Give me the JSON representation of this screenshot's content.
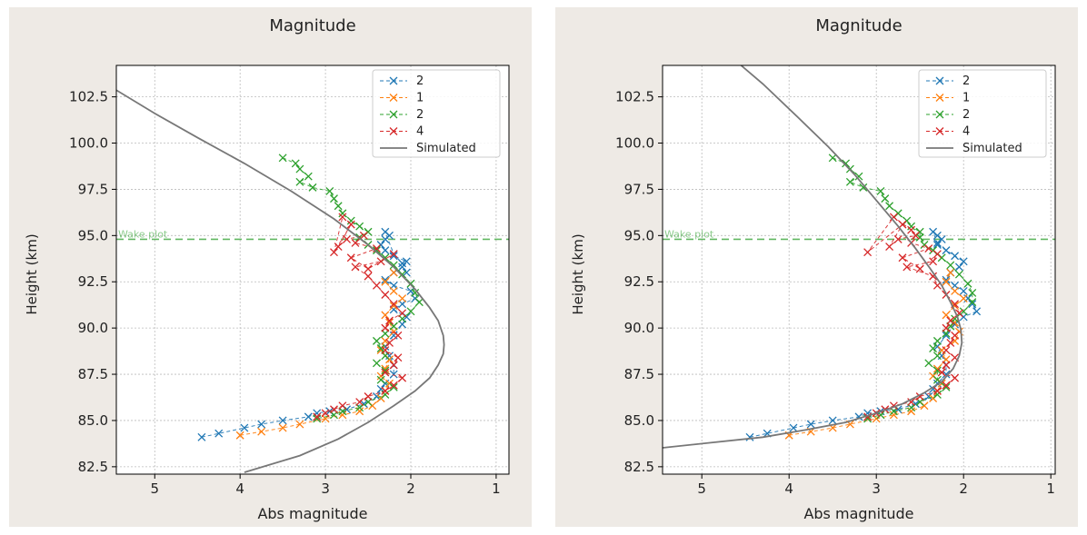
{
  "chart_data": [
    {
      "type": "line",
      "title": "Magnitude",
      "xlabel": "Abs magnitude",
      "ylabel": "Height (km)",
      "xlim": [
        5.45,
        0.85
      ],
      "ylim": [
        82.1,
        104.2
      ],
      "x_inverted": true,
      "xticks": [
        5,
        4,
        3,
        2,
        1
      ],
      "xtick_labels": [
        "5",
        "4",
        "3",
        "2",
        "1"
      ],
      "yticks": [
        82.5,
        85.0,
        87.5,
        90.0,
        92.5,
        95.0,
        97.5,
        100.0,
        102.5
      ],
      "ytick_labels": [
        "82.5",
        "85.0",
        "87.5",
        "90.0",
        "92.5",
        "95.0",
        "97.5",
        "100.0",
        "102.5"
      ],
      "grid": true,
      "legend_position": "top-right",
      "hline": {
        "y": 94.8,
        "label": "Wake plot",
        "color": "#2ca02c"
      },
      "series": [
        {
          "name": "2",
          "color": "#1f77b4",
          "marker": "x",
          "dashed": true,
          "x": [
            4.45,
            4.25,
            3.95,
            3.75,
            3.5,
            3.2,
            3.1,
            2.95,
            2.75,
            2.55,
            2.4,
            2.35,
            2.3,
            2.2,
            2.2,
            2.25,
            2.3,
            2.2,
            2.1,
            2.05,
            2.2,
            2.1,
            1.95,
            2.0,
            2.2,
            2.3,
            2.2,
            2.1,
            2.05,
            2.2,
            2.3,
            2.35,
            2.3,
            2.25,
            2.3,
            2.2,
            2.1,
            2.05
          ],
          "y": [
            84.1,
            84.3,
            84.6,
            84.8,
            85.0,
            85.2,
            85.4,
            85.5,
            85.6,
            85.9,
            86.3,
            86.7,
            87.0,
            87.5,
            88.0,
            88.5,
            89.0,
            89.6,
            90.2,
            90.6,
            91.0,
            91.3,
            91.6,
            92.0,
            92.3,
            92.6,
            93.0,
            93.3,
            93.6,
            93.9,
            94.2,
            94.5,
            94.8,
            95.0,
            95.2,
            94.0,
            93.5,
            93.0
          ]
        },
        {
          "name": "1",
          "color": "#ff7f0e",
          "marker": "x",
          "dashed": true,
          "x": [
            4.0,
            3.75,
            3.5,
            3.3,
            3.0,
            2.8,
            2.6,
            2.45,
            2.35,
            2.3,
            2.25,
            2.35,
            2.3,
            2.25,
            2.35,
            2.3,
            2.2,
            2.25,
            2.3,
            2.2,
            2.1,
            2.2,
            2.3,
            2.2
          ],
          "y": [
            84.2,
            84.4,
            84.6,
            84.8,
            85.1,
            85.3,
            85.5,
            85.8,
            86.2,
            86.6,
            87.0,
            87.4,
            87.8,
            88.3,
            88.8,
            89.3,
            89.8,
            90.3,
            90.7,
            91.2,
            91.6,
            92.0,
            92.5,
            93.0
          ]
        },
        {
          "name": "2",
          "color": "#2ca02c",
          "marker": "x",
          "dashed": true,
          "x": [
            3.5,
            3.35,
            3.3,
            3.2,
            3.3,
            3.15,
            2.95,
            2.9,
            2.85,
            2.8,
            2.7,
            2.6,
            2.5,
            2.6,
            2.5,
            2.4,
            2.3,
            2.2,
            2.1,
            2.0,
            1.95,
            1.9,
            2.0,
            2.1,
            2.2,
            2.3,
            2.4,
            2.35,
            2.3,
            2.4,
            2.3,
            2.35,
            2.2,
            2.3,
            2.5,
            2.6,
            2.8,
            2.9,
            3.1
          ],
          "y": [
            99.2,
            98.9,
            98.6,
            98.2,
            97.9,
            97.6,
            97.4,
            97.0,
            96.6,
            96.2,
            95.8,
            95.5,
            95.2,
            94.9,
            94.5,
            94.2,
            93.8,
            93.4,
            92.9,
            92.4,
            91.9,
            91.4,
            90.9,
            90.5,
            90.1,
            89.7,
            89.3,
            88.9,
            88.5,
            88.1,
            87.7,
            87.2,
            86.8,
            86.4,
            86.0,
            85.7,
            85.5,
            85.3,
            85.1
          ]
        },
        {
          "name": "4",
          "color": "#d62728",
          "marker": "x",
          "dashed": true,
          "x": [
            3.1,
            3.0,
            2.9,
            2.8,
            2.6,
            2.5,
            2.3,
            2.2,
            2.1,
            2.3,
            2.2,
            2.15,
            2.3,
            2.25,
            2.15,
            2.3,
            2.25,
            2.1,
            2.2,
            2.3,
            2.4,
            2.5,
            2.65,
            2.35,
            2.2,
            2.5,
            2.7,
            2.4,
            2.65,
            2.55,
            2.75,
            2.85,
            2.7,
            2.9,
            2.8
          ],
          "y": [
            85.2,
            85.4,
            85.6,
            85.8,
            86.0,
            86.3,
            86.6,
            86.9,
            87.3,
            87.6,
            88.0,
            88.4,
            88.8,
            89.2,
            89.6,
            90.0,
            90.4,
            90.8,
            91.3,
            91.8,
            92.3,
            92.8,
            93.3,
            93.6,
            94.0,
            93.2,
            93.8,
            94.3,
            94.6,
            95.0,
            94.8,
            94.4,
            95.6,
            94.1,
            96.0
          ]
        },
        {
          "name": "Simulated",
          "color": "#777777",
          "marker": "none",
          "dashed": false,
          "x": [
            3.95,
            3.3,
            2.85,
            2.5,
            2.2,
            1.95,
            1.78,
            1.68,
            1.62,
            1.61,
            1.62,
            1.68,
            1.78,
            1.95,
            2.2,
            2.5,
            2.9,
            3.4,
            3.95,
            4.5,
            5.0,
            5.5
          ],
          "y": [
            82.2,
            83.1,
            84.0,
            84.9,
            85.8,
            86.6,
            87.3,
            88.0,
            88.6,
            89.1,
            89.6,
            90.4,
            91.1,
            92.1,
            93.3,
            94.5,
            95.9,
            97.4,
            98.9,
            100.3,
            101.6,
            103.0
          ]
        }
      ]
    },
    {
      "type": "line",
      "title": "Magnitude",
      "xlabel": "Abs magnitude",
      "ylabel": "Height (km)",
      "xlim": [
        5.45,
        0.95
      ],
      "ylim": [
        82.1,
        104.2
      ],
      "x_inverted": true,
      "xticks": [
        5,
        4,
        3,
        2,
        1
      ],
      "xtick_labels": [
        "5",
        "4",
        "3",
        "2",
        "1"
      ],
      "yticks": [
        82.5,
        85.0,
        87.5,
        90.0,
        92.5,
        95.0,
        97.5,
        100.0,
        102.5
      ],
      "ytick_labels": [
        "82.5",
        "85.0",
        "87.5",
        "90.0",
        "92.5",
        "95.0",
        "97.5",
        "100.0",
        "102.5"
      ],
      "grid": true,
      "legend_position": "top-right",
      "hline": {
        "y": 94.8,
        "label": "Wake plot",
        "color": "#2ca02c"
      },
      "series": [
        {
          "name": "2",
          "color": "#1f77b4",
          "marker": "x",
          "dashed": true,
          "x": [
            4.45,
            4.25,
            3.95,
            3.75,
            3.5,
            3.2,
            3.1,
            2.95,
            2.75,
            2.55,
            2.4,
            2.35,
            2.3,
            2.2,
            2.2,
            2.25,
            2.3,
            2.2,
            2.1,
            2.0,
            1.85,
            1.9,
            1.95,
            2.0,
            2.1,
            2.2,
            2.15,
            2.05,
            2.0,
            2.1,
            2.2,
            2.3,
            2.25,
            2.3,
            2.35,
            2.3
          ],
          "y": [
            84.1,
            84.3,
            84.6,
            84.8,
            85.0,
            85.2,
            85.4,
            85.5,
            85.6,
            85.9,
            86.3,
            86.7,
            87.0,
            87.5,
            88.0,
            88.5,
            89.0,
            89.6,
            90.2,
            90.6,
            90.9,
            91.3,
            91.6,
            92.0,
            92.3,
            92.6,
            93.0,
            93.3,
            93.6,
            93.9,
            94.2,
            94.5,
            94.8,
            95.0,
            95.2,
            94.6
          ]
        },
        {
          "name": "1",
          "color": "#ff7f0e",
          "marker": "x",
          "dashed": true,
          "x": [
            4.0,
            3.75,
            3.5,
            3.3,
            3.0,
            2.8,
            2.6,
            2.45,
            2.35,
            2.3,
            2.25,
            2.35,
            2.3,
            2.2,
            2.25,
            2.1,
            2.05,
            2.1,
            2.2,
            2.1,
            2.0,
            2.1,
            2.2,
            2.15
          ],
          "y": [
            84.2,
            84.4,
            84.6,
            84.8,
            85.1,
            85.3,
            85.5,
            85.8,
            86.2,
            86.6,
            87.0,
            87.4,
            87.8,
            88.3,
            88.8,
            89.3,
            89.8,
            90.3,
            90.7,
            91.2,
            91.6,
            92.0,
            92.5,
            93.0
          ]
        },
        {
          "name": "2",
          "color": "#2ca02c",
          "marker": "x",
          "dashed": true,
          "x": [
            3.5,
            3.35,
            3.3,
            3.2,
            3.3,
            3.15,
            2.95,
            2.9,
            2.85,
            2.75,
            2.65,
            2.6,
            2.5,
            2.5,
            2.45,
            2.35,
            2.25,
            2.15,
            2.05,
            1.95,
            1.9,
            1.9,
            2.0,
            2.1,
            2.15,
            2.2,
            2.3,
            2.35,
            2.3,
            2.4,
            2.3,
            2.3,
            2.2,
            2.3,
            2.5,
            2.6,
            2.8,
            2.95,
            3.1
          ],
          "y": [
            99.2,
            98.9,
            98.6,
            98.2,
            97.9,
            97.6,
            97.4,
            97.0,
            96.6,
            96.2,
            95.8,
            95.5,
            95.2,
            94.9,
            94.5,
            94.2,
            93.8,
            93.4,
            92.9,
            92.4,
            91.9,
            91.4,
            90.9,
            90.5,
            90.1,
            89.7,
            89.3,
            88.9,
            88.5,
            88.1,
            87.7,
            87.2,
            86.8,
            86.4,
            86.0,
            85.7,
            85.5,
            85.3,
            85.1
          ]
        },
        {
          "name": "4",
          "color": "#d62728",
          "marker": "x",
          "dashed": true,
          "x": [
            3.1,
            3.0,
            2.9,
            2.8,
            2.6,
            2.5,
            2.3,
            2.2,
            2.1,
            2.25,
            2.2,
            2.1,
            2.2,
            2.15,
            2.1,
            2.2,
            2.15,
            2.05,
            2.1,
            2.2,
            2.3,
            2.35,
            2.65,
            2.35,
            2.3,
            2.5,
            2.7,
            2.4,
            2.6,
            2.55,
            2.75,
            2.85,
            2.7,
            3.1,
            2.8,
            2.6
          ],
          "y": [
            85.2,
            85.4,
            85.6,
            85.8,
            86.0,
            86.3,
            86.6,
            86.9,
            87.3,
            87.6,
            88.0,
            88.4,
            88.8,
            89.2,
            89.6,
            90.0,
            90.4,
            90.8,
            91.3,
            91.8,
            92.3,
            92.8,
            93.3,
            93.6,
            94.0,
            93.2,
            93.8,
            94.3,
            94.6,
            95.0,
            94.8,
            94.4,
            95.6,
            94.1,
            96.0,
            95.3
          ]
        },
        {
          "name": "Simulated",
          "color": "#777777",
          "marker": "none",
          "dashed": false,
          "x": [
            5.5,
            4.9,
            4.3,
            3.8,
            3.35,
            3.0,
            2.7,
            2.45,
            2.25,
            2.12,
            2.05,
            2.02,
            2.03,
            2.07,
            2.15,
            2.25,
            2.38,
            2.55,
            2.75,
            3.0,
            3.25,
            3.55,
            3.9,
            4.3,
            4.55
          ],
          "y": [
            83.5,
            83.8,
            84.1,
            84.5,
            84.9,
            85.4,
            85.9,
            86.5,
            87.1,
            87.8,
            88.5,
            89.2,
            89.9,
            90.6,
            91.4,
            92.3,
            93.2,
            94.3,
            95.5,
            96.9,
            98.3,
            99.8,
            101.4,
            103.2,
            104.2
          ]
        }
      ]
    }
  ]
}
